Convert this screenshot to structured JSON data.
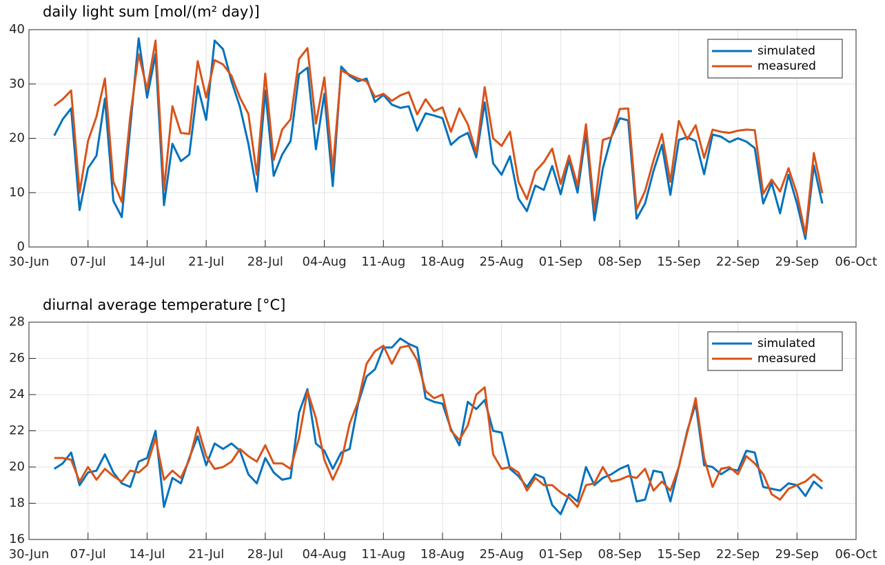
{
  "chart_data": [
    {
      "type": "line",
      "title": "daily light sum [mol/(m² day)]",
      "x": [
        "03-Jul",
        "04-Jul",
        "05-Jul",
        "06-Jul",
        "07-Jul",
        "08-Jul",
        "09-Jul",
        "10-Jul",
        "11-Jul",
        "12-Jul",
        "13-Jul",
        "14-Jul",
        "15-Jul",
        "16-Jul",
        "17-Jul",
        "18-Jul",
        "19-Jul",
        "20-Jul",
        "21-Jul",
        "22-Jul",
        "23-Jul",
        "24-Jul",
        "25-Jul",
        "26-Jul",
        "27-Jul",
        "28-Jul",
        "29-Jul",
        "30-Jul",
        "31-Jul",
        "01-Aug",
        "02-Aug",
        "03-Aug",
        "04-Aug",
        "05-Aug",
        "06-Aug",
        "07-Aug",
        "08-Aug",
        "09-Aug",
        "10-Aug",
        "11-Aug",
        "12-Aug",
        "13-Aug",
        "14-Aug",
        "15-Aug",
        "16-Aug",
        "17-Aug",
        "18-Aug",
        "19-Aug",
        "20-Aug",
        "21-Aug",
        "22-Aug",
        "23-Aug",
        "24-Aug",
        "25-Aug",
        "26-Aug",
        "27-Aug",
        "28-Aug",
        "29-Aug",
        "30-Aug",
        "31-Aug",
        "01-Sep",
        "02-Sep",
        "03-Sep",
        "04-Sep",
        "05-Sep",
        "06-Sep",
        "07-Sep",
        "08-Sep",
        "09-Sep",
        "10-Sep",
        "11-Sep",
        "12-Sep",
        "13-Sep",
        "14-Sep",
        "15-Sep",
        "16-Sep",
        "17-Sep",
        "18-Sep",
        "19-Sep",
        "20-Sep",
        "21-Sep",
        "22-Sep",
        "23-Sep",
        "24-Sep",
        "25-Sep",
        "26-Sep",
        "27-Sep",
        "28-Sep",
        "29-Sep",
        "30-Sep",
        "01-Oct",
        "02-Oct"
      ],
      "series": [
        {
          "name": "simulated",
          "color": "#0072bd",
          "values": [
            20.5,
            23.5,
            25.5,
            6.8,
            14.5,
            16.8,
            27.3,
            8.5,
            5.5,
            22,
            38.4,
            27.5,
            35.5,
            7.7,
            19,
            15.8,
            17,
            29.6,
            23.4,
            38,
            36.4,
            30.5,
            25.8,
            19,
            10.2,
            28.8,
            13.1,
            17,
            19.5,
            31.8,
            33,
            18,
            28.2,
            11.2,
            33.2,
            31.5,
            30.5,
            31,
            26.7,
            28,
            26.2,
            25.6,
            25.9,
            21.4,
            24.6,
            24.2,
            23.7,
            18.8,
            20.2,
            21,
            16.5,
            26.6,
            15.4,
            13.3,
            16.7,
            8.9,
            6.6,
            11.3,
            10.5,
            14.9,
            9.7,
            16,
            10,
            21,
            4.9,
            14.5,
            20.2,
            23.7,
            23.3,
            5.2,
            8,
            14,
            18.8,
            9.6,
            19.7,
            20.2,
            19.5,
            13.4,
            20.7,
            20.3,
            19.3,
            20,
            19.4,
            18.2,
            8,
            11.8,
            6.2,
            13.3,
            8,
            1.5,
            15,
            8
          ]
        },
        {
          "name": "measured",
          "color": "#d95319",
          "values": [
            26,
            27.2,
            28.8,
            10,
            19.5,
            24,
            31,
            12,
            8.3,
            24,
            35.5,
            29,
            38,
            10.5,
            25.9,
            21,
            20.8,
            34.2,
            27.5,
            34.4,
            33.6,
            31.5,
            27.5,
            24.5,
            13.3,
            31.9,
            16,
            21.6,
            23.5,
            34.6,
            36.6,
            22.7,
            31.2,
            14.2,
            32.5,
            31.7,
            31,
            30.5,
            27.6,
            28.2,
            26.9,
            27.9,
            28.5,
            24.4,
            27.2,
            25,
            25.7,
            21.2,
            25.5,
            22.6,
            17.3,
            29.4,
            20,
            18.6,
            21.2,
            12,
            8.8,
            13.9,
            15.6,
            18.1,
            11.6,
            16.8,
            11.3,
            22.6,
            6.8,
            19.7,
            20.2,
            25.4,
            25.5,
            6.9,
            10.3,
            15.9,
            20.8,
            12,
            23.2,
            19.8,
            22.4,
            16.4,
            21.6,
            21.2,
            21,
            21.4,
            21.6,
            21.5,
            9.8,
            12.4,
            10.2,
            14.5,
            9.8,
            2.3,
            17.3,
            9.9
          ]
        }
      ],
      "xlim": [
        "30-Jun",
        "06-Oct"
      ],
      "xticks": [
        "30-Jun",
        "07-Jul",
        "14-Jul",
        "21-Jul",
        "28-Jul",
        "04-Aug",
        "11-Aug",
        "18-Aug",
        "25-Aug",
        "01-Sep",
        "08-Sep",
        "15-Sep",
        "22-Sep",
        "29-Sep",
        "06-Oct"
      ],
      "ylim": [
        0,
        40
      ],
      "yticks": [
        0,
        10,
        20,
        30,
        40
      ],
      "grid": true,
      "legend": "upper right"
    },
    {
      "type": "line",
      "title": "diurnal average temperature [°C]",
      "x": [
        "03-Jul",
        "04-Jul",
        "05-Jul",
        "06-Jul",
        "07-Jul",
        "08-Jul",
        "09-Jul",
        "10-Jul",
        "11-Jul",
        "12-Jul",
        "13-Jul",
        "14-Jul",
        "15-Jul",
        "16-Jul",
        "17-Jul",
        "18-Jul",
        "19-Jul",
        "20-Jul",
        "21-Jul",
        "22-Jul",
        "23-Jul",
        "24-Jul",
        "25-Jul",
        "26-Jul",
        "27-Jul",
        "28-Jul",
        "29-Jul",
        "30-Jul",
        "31-Jul",
        "01-Aug",
        "02-Aug",
        "03-Aug",
        "04-Aug",
        "05-Aug",
        "06-Aug",
        "07-Aug",
        "08-Aug",
        "09-Aug",
        "10-Aug",
        "11-Aug",
        "12-Aug",
        "13-Aug",
        "14-Aug",
        "15-Aug",
        "16-Aug",
        "17-Aug",
        "18-Aug",
        "19-Aug",
        "20-Aug",
        "21-Aug",
        "22-Aug",
        "23-Aug",
        "24-Aug",
        "25-Aug",
        "26-Aug",
        "27-Aug",
        "28-Aug",
        "29-Aug",
        "30-Aug",
        "31-Aug",
        "01-Sep",
        "02-Sep",
        "03-Sep",
        "04-Sep",
        "05-Sep",
        "06-Sep",
        "07-Sep",
        "08-Sep",
        "09-Sep",
        "10-Sep",
        "11-Sep",
        "12-Sep",
        "13-Sep",
        "14-Sep",
        "15-Sep",
        "16-Sep",
        "17-Sep",
        "18-Sep",
        "19-Sep",
        "20-Sep",
        "21-Sep",
        "22-Sep",
        "23-Sep",
        "24-Sep",
        "25-Sep",
        "26-Sep",
        "27-Sep",
        "28-Sep",
        "29-Sep",
        "30-Sep",
        "01-Oct",
        "02-Oct"
      ],
      "series": [
        {
          "name": "simulated",
          "color": "#0072bd",
          "values": [
            19.9,
            20.2,
            20.8,
            19,
            19.7,
            19.8,
            20.7,
            19.7,
            19.1,
            18.9,
            20.3,
            20.5,
            22,
            17.8,
            19.4,
            19.1,
            20.5,
            21.7,
            20.1,
            21.3,
            21,
            21.3,
            20.9,
            19.6,
            19.1,
            20.5,
            19.7,
            19.3,
            19.4,
            23,
            24.3,
            21.3,
            20.9,
            19.9,
            20.8,
            21,
            23.5,
            25,
            25.4,
            26.6,
            26.6,
            27.1,
            26.8,
            26.6,
            23.8,
            23.6,
            23.5,
            22.1,
            21.2,
            23.6,
            23.2,
            23.7,
            22,
            21.9,
            19.9,
            19.5,
            18.9,
            19.6,
            19.4,
            17.9,
            17.4,
            18.5,
            18.1,
            20,
            19,
            19.4,
            19.6,
            19.9,
            20.1,
            18.1,
            18.2,
            19.8,
            19.7,
            18.1,
            20,
            22,
            23.5,
            20.1,
            20,
            19.6,
            19.9,
            19.8,
            20.9,
            20.8,
            18.9,
            18.8,
            18.7,
            19.1,
            19,
            18.4,
            19.2,
            18.8
          ]
        },
        {
          "name": "measured",
          "color": "#d95319",
          "values": [
            20.5,
            20.5,
            20.4,
            19.2,
            20,
            19.3,
            19.9,
            19.5,
            19.2,
            19.8,
            19.7,
            20.1,
            21.6,
            19.3,
            19.8,
            19.4,
            20.4,
            22.2,
            20.6,
            19.9,
            20,
            20.3,
            21,
            20.6,
            20.3,
            21.2,
            20.2,
            20.2,
            19.9,
            21.6,
            24.2,
            22.7,
            20.4,
            19.3,
            20.3,
            22.4,
            23.6,
            25.7,
            26.4,
            26.7,
            25.7,
            26.6,
            26.7,
            25.9,
            24.2,
            23.8,
            24,
            22,
            21.5,
            22.3,
            24,
            24.4,
            20.7,
            19.9,
            20,
            19.7,
            18.7,
            19.4,
            19,
            19,
            18.6,
            18.3,
            17.8,
            19,
            19.1,
            20,
            19.2,
            19.3,
            19.5,
            19.4,
            19.9,
            18.7,
            19.2,
            18.7,
            20,
            21.9,
            23.8,
            20.5,
            18.9,
            19.9,
            20,
            19.6,
            20.6,
            20.2,
            19.6,
            18.5,
            18.2,
            18.8,
            19,
            19.2,
            19.6,
            19.2
          ]
        }
      ],
      "xlim": [
        "30-Jun",
        "06-Oct"
      ],
      "xticks": [
        "30-Jun",
        "07-Jul",
        "14-Jul",
        "21-Jul",
        "28-Jul",
        "04-Aug",
        "11-Aug",
        "18-Aug",
        "25-Aug",
        "01-Sep",
        "08-Sep",
        "15-Sep",
        "22-Sep",
        "29-Sep",
        "06-Oct"
      ],
      "ylim": [
        16,
        28
      ],
      "yticks": [
        16,
        18,
        20,
        22,
        24,
        26,
        28
      ],
      "grid": true,
      "legend": "upper right"
    }
  ]
}
